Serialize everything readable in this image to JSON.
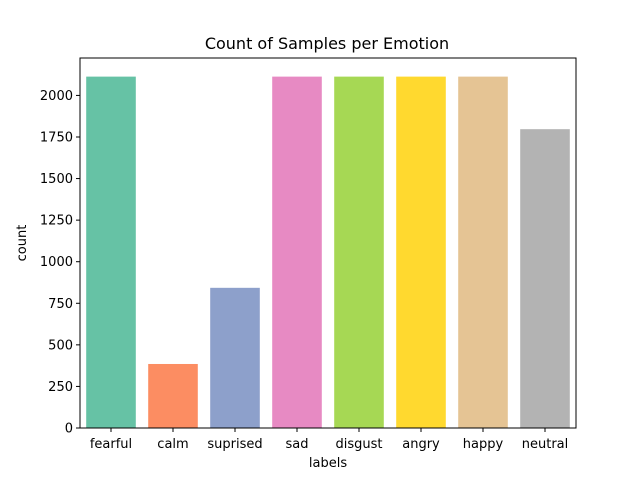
{
  "chart_data": {
    "type": "bar",
    "title": "Count of Samples per Emotion",
    "xlabel": "labels",
    "ylabel": "count",
    "categories": [
      "fearful",
      "calm",
      "suprised",
      "sad",
      "disgust",
      "angry",
      "happy",
      "neutral"
    ],
    "values": [
      2113,
      385,
      843,
      2113,
      2113,
      2113,
      2113,
      1797
    ],
    "colors": [
      "#66c2a5",
      "#fc8d62",
      "#8da0cb",
      "#e78ac3",
      "#a6d854",
      "#ffd92f",
      "#e5c494",
      "#b3b3b3"
    ],
    "ylim": [
      0,
      2225
    ],
    "yticks": [
      0,
      250,
      500,
      750,
      1000,
      1250,
      1500,
      1750,
      2000
    ],
    "ytick_labels": [
      "0",
      "250",
      "500",
      "750",
      "1000",
      "1250",
      "1500",
      "1750",
      "2000"
    ],
    "grid": false,
    "legend": "none"
  }
}
